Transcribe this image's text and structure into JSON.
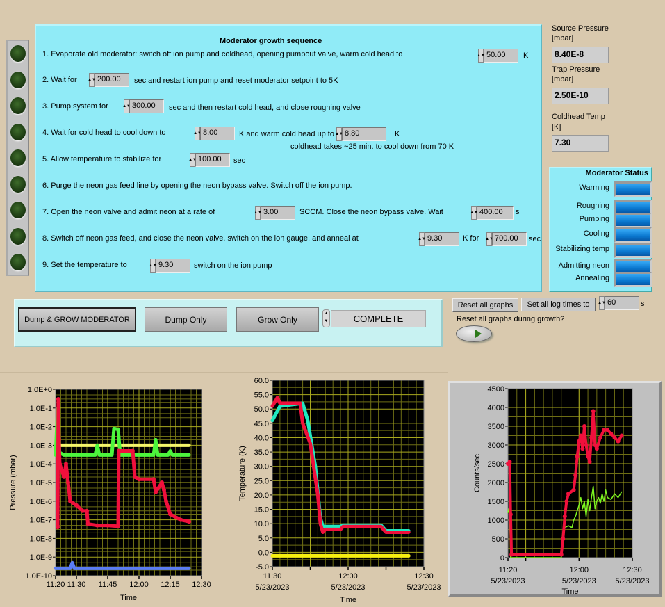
{
  "sequence": {
    "title": "Moderator growth sequence",
    "step1": {
      "text": "1. Evaporate old moderator: switch off ion pump and coldhead,  opening pumpout valve,  warm cold head to",
      "value": "50.00",
      "unit": "K"
    },
    "step2": {
      "text": "2. Wait for",
      "value": "200.00",
      "after": "sec and restart ion pump and reset moderator setpoint to 5K"
    },
    "step3": {
      "text": "3. Pump system for",
      "value": "300.00",
      "after": "sec and then restart cold head, and close roughing valve"
    },
    "step4": {
      "text": "4. Wait for cold head to cool down to",
      "value": "8.00",
      "mid": "K and warm cold head up to",
      "value2": "8.80",
      "unit": "K",
      "note": "coldhead takes ~25 min. to cool down from 70 K"
    },
    "step5": {
      "text": "5. Allow temperature to stabilize for",
      "value": "100.00",
      "unit": "sec"
    },
    "step6": {
      "text": "6. Purge the neon gas feed line by opening the neon bypass valve. Switch off the ion pump."
    },
    "step7": {
      "text": "7. Open the neon  valve and admit neon at a rate of",
      "value": "3.00",
      "mid": "SCCM. Close the neon bypass valve. Wait",
      "value2": "400.00",
      "unit": "s"
    },
    "step8": {
      "text": "8. Switch off neon gas feed, and close the neon valve. switch on the ion gauge, and anneal at",
      "value": "9.30",
      "mid": "K for",
      "value2": "700.00",
      "unit": "sec"
    },
    "step9": {
      "text": "9. Set the temperature to",
      "value": "9.30",
      "after": "switch on the ion pump"
    },
    "step_leds": [
      false,
      false,
      false,
      false,
      false,
      false,
      false,
      false,
      false
    ]
  },
  "readouts": {
    "source_pressure": {
      "label": "Source Pressure",
      "unit": "[mbar]",
      "value": "8.40E-8"
    },
    "trap_pressure": {
      "label": "Trap Pressure",
      "unit": "[mbar]",
      "value": "2.50E-10"
    },
    "coldhead_temp": {
      "label": "Coldhead Temp",
      "unit": "[K]",
      "value": "7.30"
    }
  },
  "moderator_status": {
    "title": "Moderator Status",
    "items": [
      "Warming",
      "Roughing",
      "Pumping",
      "Cooling",
      "Stabilizing temp",
      "Admitting neon",
      "Annealing"
    ]
  },
  "controls": {
    "dump_grow": "Dump & GROW MODERATOR",
    "dump_only": "Dump Only",
    "grow_only": "Grow Only",
    "state": "COMPLETE",
    "reset_graphs": "Reset  all graphs",
    "set_log_times": "Set all log times to",
    "log_time_value": "60",
    "log_time_unit": "s",
    "reset_during_growth_label": "Reset all graphs during growth?",
    "reset_during_growth": false
  },
  "colors": {
    "panel": "#90ebf7",
    "background": "#d9c9ae",
    "plot_bg": "#000000",
    "grid": "#9a9a1e"
  },
  "chart_data": [
    {
      "type": "line",
      "ylabel": "Pressure (mbar)",
      "xlabel": "Time",
      "yscale": "log",
      "ylim": [
        1e-10,
        1
      ],
      "xlim": [
        "11:20",
        "12:30"
      ],
      "grid": true,
      "y_ticks": [
        "1.0E+0",
        "1.0E-1",
        "1.0E-2",
        "1.0E-3",
        "1.0E-4",
        "1.0E-5",
        "1.0E-6",
        "1.0E-7",
        "1.0E-8",
        "1.0E-9",
        "1.0E-10"
      ],
      "x_ticks": [
        {
          "t": "11:20",
          "label": "11:20"
        },
        {
          "t": "11:30",
          "label": "11:30"
        },
        {
          "t": "11:45",
          "label": "11:45"
        },
        {
          "t": "12:00",
          "label": "12:00"
        },
        {
          "t": "12:15",
          "label": "12:15"
        },
        {
          "t": "12:30",
          "label": "12:30"
        }
      ],
      "series": [
        {
          "color": "#f5f56a",
          "x": [
            "11:20",
            "12:24"
          ],
          "y": [
            0.001,
            0.001
          ]
        },
        {
          "color": "#4cf53c",
          "x": [
            "11:20",
            "11:21",
            "11:21.5",
            "11:22",
            "11:24",
            "11:39",
            "11:40",
            "11:41",
            "11:47",
            "11:48",
            "11:50",
            "11:51",
            "12:07",
            "12:08",
            "12:09",
            "12:14",
            "12:15",
            "12:16",
            "12:24"
          ],
          "y": [
            0.0003,
            0.1,
            0.001,
            0.0004,
            0.0003,
            0.0003,
            0.001,
            0.0003,
            0.0003,
            0.008,
            0.007,
            0.0003,
            0.0003,
            0.002,
            0.0003,
            0.0003,
            0.0005,
            0.0003,
            0.0003
          ]
        },
        {
          "color": "#f0103c",
          "x": [
            "11:21",
            "11:21.3",
            "11:21.6",
            "11:22",
            "11:24",
            "11:25",
            "11:26",
            "11:27",
            "11:30",
            "11:33",
            "11:35",
            "11:35.5",
            "11:40",
            "11:45",
            "11:50",
            "11:50.3",
            "11:57",
            "11:58",
            "12:00",
            "12:07",
            "12:08",
            "12:11",
            "12:12",
            "12:13",
            "12:15",
            "12:20",
            "12:24"
          ],
          "y": [
            4e-08,
            0.3,
            0.002,
            0.0001,
            2e-05,
            0.0001,
            1e-05,
            1e-06,
            6e-07,
            3e-07,
            3e-07,
            6e-08,
            5e-08,
            5e-08,
            4.5e-08,
            0.0005,
            0.0005,
            2e-05,
            1.5e-05,
            1.5e-05,
            3e-06,
            1e-05,
            4e-06,
            1e-06,
            2e-07,
            1e-07,
            8e-08
          ]
        },
        {
          "color": "#5a7cf5",
          "x": [
            "11:20",
            "11:27",
            "11:28",
            "11:29",
            "12:24"
          ],
          "y": [
            2.5e-10,
            2.5e-10,
            5e-10,
            2.5e-10,
            2.5e-10
          ]
        }
      ]
    },
    {
      "type": "line",
      "ylabel": "Temperature (K)",
      "xlabel": "Time",
      "ylim": [
        -5,
        60
      ],
      "xlim": [
        "11:30",
        "12:30"
      ],
      "grid": true,
      "y_ticks": [
        "60.0",
        "55.0",
        "50.0",
        "45.0",
        "40.0",
        "35.0",
        "30.0",
        "25.0",
        "20.0",
        "15.0",
        "10.0",
        "5.0",
        "0.0",
        "-5.0"
      ],
      "x_ticks": [
        {
          "t": "11:30",
          "label": "11:30",
          "date": "5/23/2023"
        },
        {
          "t": "11:45",
          "label": "",
          "date": ""
        },
        {
          "t": "12:00",
          "label": "12:00",
          "date": "5/23/2023"
        },
        {
          "t": "12:15",
          "label": "",
          "date": ""
        },
        {
          "t": "12:30",
          "label": "12:30",
          "date": "5/23/2023"
        }
      ],
      "series": [
        {
          "color": "#f5ee10",
          "x": [
            "11:30",
            "12:24"
          ],
          "y": [
            -1.2,
            -1.2
          ]
        },
        {
          "color": "#20e8c0",
          "x": [
            "11:30",
            "11:33",
            "11:42",
            "11:44",
            "11:47",
            "11:49",
            "11:50",
            "11:57",
            "11:58",
            "12:13",
            "12:15",
            "12:24"
          ],
          "y": [
            46,
            51,
            52,
            46,
            30,
            12,
            9,
            9,
            9.5,
            9.5,
            7.5,
            7.5
          ]
        },
        {
          "color": "#f0103c",
          "x": [
            "11:30",
            "11:32",
            "11:33",
            "11:41",
            "11:42",
            "11:45",
            "11:48",
            "11:49",
            "11:50",
            "11:51",
            "11:57",
            "11:58",
            "12:13",
            "12:15",
            "12:24"
          ],
          "y": [
            51,
            54,
            52,
            52,
            45,
            38,
            20,
            10,
            7,
            8,
            8,
            9,
            9,
            7,
            7
          ]
        }
      ]
    },
    {
      "type": "line",
      "ylabel": "Counts/sec",
      "xlabel": "Time",
      "ylim": [
        0,
        4500
      ],
      "xlim": [
        "11:20",
        "12:30"
      ],
      "grid": true,
      "y_ticks": [
        "4500",
        "4000",
        "3500",
        "3000",
        "2500",
        "2000",
        "1500",
        "1000",
        "500",
        "0"
      ],
      "x_ticks": [
        {
          "t": "11:20",
          "label": "11:20",
          "date": "5/23/2023"
        },
        {
          "t": "11:30",
          "label": "",
          "date": ""
        },
        {
          "t": "12:00",
          "label": "12:00",
          "date": "5/23/2023"
        },
        {
          "t": "12:30",
          "label": "12:30",
          "date": "5/23/2023"
        }
      ],
      "series": [
        {
          "color": "#7cf520",
          "x": [
            "11:20",
            "11:20.5",
            "11:21",
            "11:21.5",
            "11:50",
            "11:51",
            "11:52",
            "11:54",
            "11:56",
            "11:57",
            "11:58",
            "12:00",
            "12:01",
            "12:02",
            "12:03",
            "12:04",
            "12:05",
            "12:06",
            "12:07",
            "12:08",
            "12:09",
            "12:10",
            "12:11",
            "12:12",
            "12:13",
            "12:14",
            "12:15",
            "12:16",
            "12:18",
            "12:20",
            "12:22",
            "12:24"
          ],
          "y": [
            1200,
            1300,
            1000,
            0,
            0,
            500,
            800,
            850,
            800,
            1000,
            1100,
            1400,
            1600,
            1300,
            1500,
            1100,
            1550,
            1250,
            1600,
            1900,
            1300,
            1500,
            1600,
            1450,
            1700,
            1500,
            1800,
            1600,
            1550,
            1700,
            1600,
            1750
          ]
        },
        {
          "color": "#f0103c",
          "x": [
            "11:20",
            "11:21",
            "11:21.5",
            "11:22",
            "11:50",
            "11:51",
            "11:52",
            "11:53",
            "11:54",
            "11:57",
            "11:58",
            "11:59",
            "12:00",
            "12:01",
            "12:02",
            "12:03",
            "12:04",
            "12:05",
            "12:06",
            "12:07",
            "12:08",
            "12:09",
            "12:10",
            "12:12",
            "12:14",
            "12:16",
            "12:18",
            "12:20",
            "12:22",
            "12:24"
          ],
          "y": [
            2500,
            2550,
            1150,
            80,
            80,
            500,
            1100,
            1500,
            1700,
            1800,
            2200,
            2700,
            3100,
            3250,
            2900,
            3500,
            3000,
            2700,
            2550,
            3200,
            3900,
            3000,
            2900,
            3200,
            3400,
            3400,
            3300,
            3200,
            3100,
            3250
          ]
        }
      ]
    }
  ]
}
